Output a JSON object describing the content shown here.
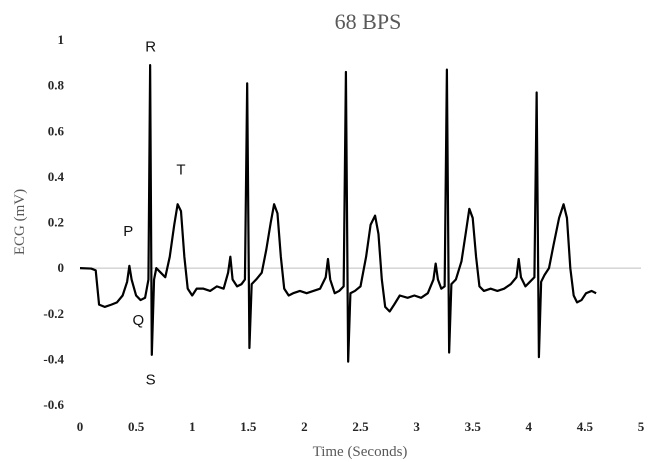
{
  "chart_data": {
    "type": "line",
    "title": "68 BPS",
    "xlabel": "Time (Seconds)",
    "ylabel": "ECG (mV)",
    "xlim": [
      0,
      5
    ],
    "ylim": [
      -0.6,
      1
    ],
    "xticks": [
      0,
      0.5,
      1,
      1.5,
      2,
      2.5,
      3,
      3.5,
      4,
      4.5,
      5
    ],
    "yticks": [
      -0.6,
      -0.4,
      -0.2,
      0,
      0.2,
      0.4,
      0.6,
      0.8,
      1
    ],
    "xtick_labels": [
      "0",
      "0.5",
      "1",
      "1.5",
      "2",
      "2.5",
      "3",
      "3.5",
      "4",
      "4.5",
      "5"
    ],
    "ytick_labels": [
      "-0.6",
      "-0.4",
      "-0.2",
      "0",
      "0.2",
      "0.4",
      "0.6",
      "0.8",
      "1"
    ],
    "grid": false,
    "legend": "none",
    "line_color": "#000000",
    "zero_line_color": "#bfbfbf",
    "annotations": [
      {
        "text": "R",
        "x": 0.63,
        "y": 0.95
      },
      {
        "text": "T",
        "x": 0.9,
        "y": 0.41
      },
      {
        "text": "P",
        "x": 0.43,
        "y": 0.14
      },
      {
        "text": "Q",
        "x": 0.52,
        "y": -0.25
      },
      {
        "text": "S",
        "x": 0.63,
        "y": -0.51
      }
    ],
    "series": [
      {
        "values": [
          [
            0.0,
            0.0
          ],
          [
            0.1,
            -0.002
          ],
          [
            0.14,
            -0.01
          ],
          [
            0.17,
            -0.16
          ],
          [
            0.22,
            -0.17
          ],
          [
            0.28,
            -0.16
          ],
          [
            0.33,
            -0.15
          ],
          [
            0.38,
            -0.12
          ],
          [
            0.42,
            -0.06
          ],
          [
            0.44,
            0.01
          ],
          [
            0.46,
            -0.05
          ],
          [
            0.5,
            -0.12
          ],
          [
            0.54,
            -0.14
          ],
          [
            0.58,
            -0.13
          ],
          [
            0.61,
            -0.05
          ],
          [
            0.625,
            0.89
          ],
          [
            0.64,
            -0.38
          ],
          [
            0.66,
            -0.05
          ],
          [
            0.68,
            0.0
          ],
          [
            0.72,
            -0.02
          ],
          [
            0.76,
            -0.04
          ],
          [
            0.8,
            0.05
          ],
          [
            0.84,
            0.19
          ],
          [
            0.87,
            0.28
          ],
          [
            0.9,
            0.25
          ],
          [
            0.93,
            0.05
          ],
          [
            0.96,
            -0.09
          ],
          [
            1.0,
            -0.12
          ],
          [
            1.04,
            -0.09
          ],
          [
            1.1,
            -0.09
          ],
          [
            1.16,
            -0.1
          ],
          [
            1.22,
            -0.08
          ],
          [
            1.28,
            -0.09
          ],
          [
            1.32,
            -0.02
          ],
          [
            1.34,
            0.05
          ],
          [
            1.36,
            -0.05
          ],
          [
            1.4,
            -0.08
          ],
          [
            1.44,
            -0.07
          ],
          [
            1.47,
            -0.05
          ],
          [
            1.49,
            0.81
          ],
          [
            1.51,
            -0.35
          ],
          [
            1.53,
            -0.07
          ],
          [
            1.57,
            -0.05
          ],
          [
            1.62,
            -0.02
          ],
          [
            1.66,
            0.08
          ],
          [
            1.7,
            0.2
          ],
          [
            1.73,
            0.28
          ],
          [
            1.76,
            0.24
          ],
          [
            1.79,
            0.05
          ],
          [
            1.82,
            -0.09
          ],
          [
            1.86,
            -0.12
          ],
          [
            1.9,
            -0.11
          ],
          [
            1.96,
            -0.1
          ],
          [
            2.02,
            -0.11
          ],
          [
            2.08,
            -0.1
          ],
          [
            2.14,
            -0.09
          ],
          [
            2.19,
            -0.04
          ],
          [
            2.21,
            0.04
          ],
          [
            2.23,
            -0.05
          ],
          [
            2.27,
            -0.11
          ],
          [
            2.31,
            -0.1
          ],
          [
            2.35,
            -0.08
          ],
          [
            2.37,
            0.86
          ],
          [
            2.39,
            -0.41
          ],
          [
            2.41,
            -0.11
          ],
          [
            2.45,
            -0.1
          ],
          [
            2.5,
            -0.08
          ],
          [
            2.55,
            0.05
          ],
          [
            2.59,
            0.19
          ],
          [
            2.63,
            0.23
          ],
          [
            2.66,
            0.15
          ],
          [
            2.69,
            -0.05
          ],
          [
            2.72,
            -0.17
          ],
          [
            2.76,
            -0.19
          ],
          [
            2.8,
            -0.16
          ],
          [
            2.85,
            -0.12
          ],
          [
            2.92,
            -0.13
          ],
          [
            2.98,
            -0.12
          ],
          [
            3.04,
            -0.13
          ],
          [
            3.1,
            -0.11
          ],
          [
            3.15,
            -0.05
          ],
          [
            3.17,
            0.02
          ],
          [
            3.19,
            -0.05
          ],
          [
            3.22,
            -0.09
          ],
          [
            3.25,
            -0.08
          ],
          [
            3.27,
            0.87
          ],
          [
            3.29,
            -0.37
          ],
          [
            3.31,
            -0.07
          ],
          [
            3.35,
            -0.05
          ],
          [
            3.4,
            0.03
          ],
          [
            3.44,
            0.16
          ],
          [
            3.47,
            0.26
          ],
          [
            3.5,
            0.22
          ],
          [
            3.53,
            0.05
          ],
          [
            3.56,
            -0.08
          ],
          [
            3.6,
            -0.1
          ],
          [
            3.66,
            -0.09
          ],
          [
            3.72,
            -0.1
          ],
          [
            3.78,
            -0.09
          ],
          [
            3.84,
            -0.07
          ],
          [
            3.89,
            -0.04
          ],
          [
            3.91,
            0.04
          ],
          [
            3.93,
            -0.04
          ],
          [
            3.97,
            -0.08
          ],
          [
            4.01,
            -0.06
          ],
          [
            4.05,
            -0.04
          ],
          [
            4.07,
            0.77
          ],
          [
            4.09,
            -0.39
          ],
          [
            4.11,
            -0.06
          ],
          [
            4.14,
            -0.03
          ],
          [
            4.18,
            0.0
          ],
          [
            4.22,
            0.1
          ],
          [
            4.27,
            0.22
          ],
          [
            4.31,
            0.28
          ],
          [
            4.34,
            0.22
          ],
          [
            4.37,
            0.0
          ],
          [
            4.4,
            -0.12
          ],
          [
            4.43,
            -0.15
          ],
          [
            4.47,
            -0.14
          ],
          [
            4.51,
            -0.11
          ],
          [
            4.56,
            -0.1
          ],
          [
            4.6,
            -0.11
          ]
        ]
      }
    ]
  }
}
